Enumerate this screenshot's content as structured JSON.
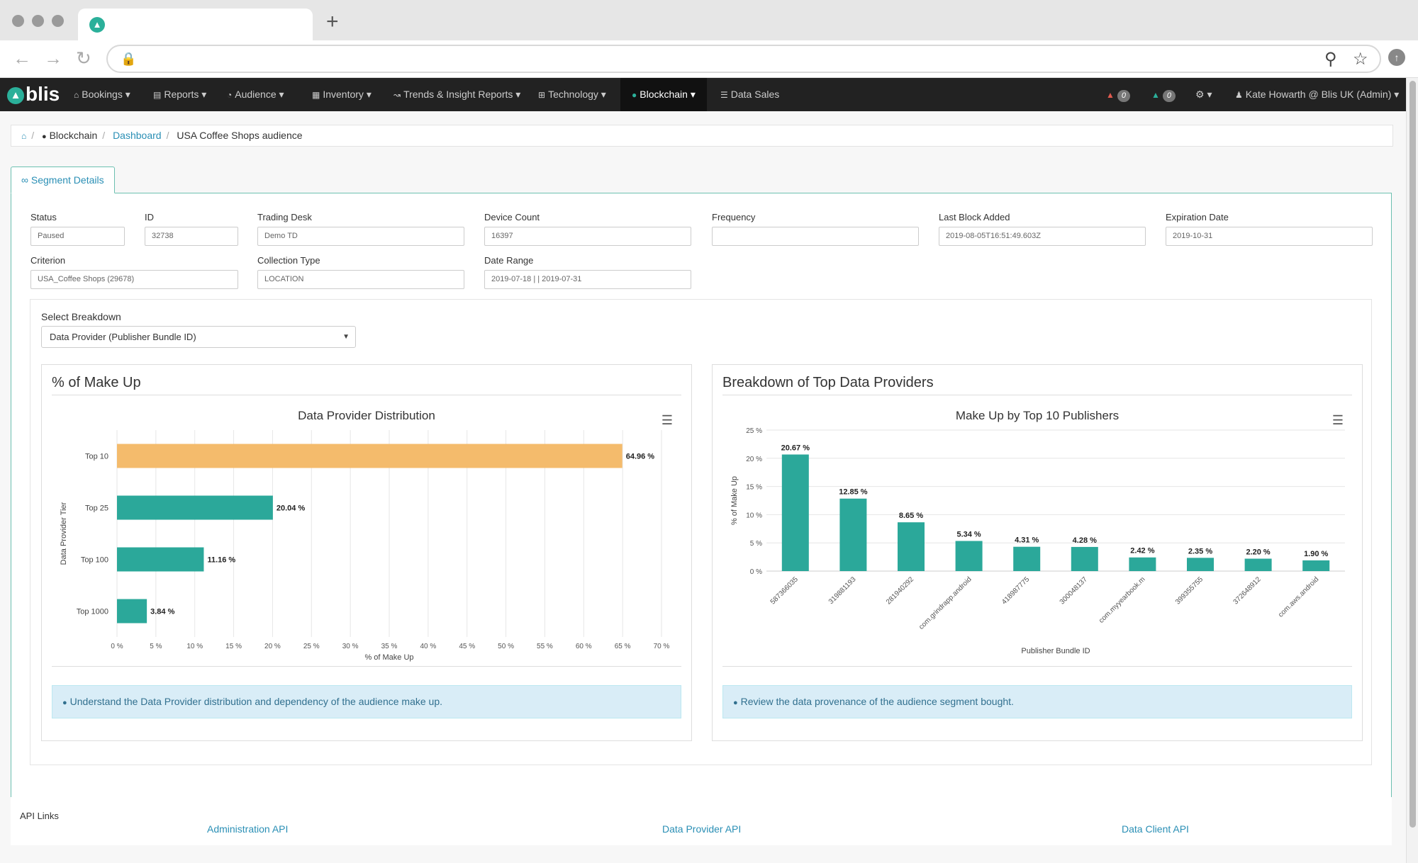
{
  "browser": {
    "new_tab": "+",
    "icons": {
      "back": "arrow-left-icon",
      "forward": "arrow-right-icon",
      "reload": "reload-icon",
      "lock": "lock-icon",
      "zoom": "magnifier-icon",
      "bookmark": "star-icon"
    }
  },
  "nav": {
    "brand": "blis",
    "items": [
      {
        "label": "Bookings",
        "icon": "home-icon"
      },
      {
        "label": "Reports",
        "icon": "chart-icon"
      },
      {
        "label": "Audience",
        "icon": "gauge-icon"
      },
      {
        "label": "Inventory",
        "icon": "grid-icon"
      },
      {
        "label": "Trends & Insight Reports",
        "icon": "line-chart-icon"
      },
      {
        "label": "Technology",
        "icon": "cog-grid-icon"
      },
      {
        "label": "Blockchain",
        "icon": "circle-icon"
      },
      {
        "label": "Data Sales",
        "icon": "list-icon"
      }
    ],
    "badge1": "0",
    "badge2": "0",
    "user": "Kate Howarth @ Blis UK (Admin)"
  },
  "breadcrumb": {
    "root": "Blockchain",
    "dashboard": "Dashboard",
    "current": "USA Coffee Shops audience"
  },
  "tab_label": "Segment Details",
  "fields": {
    "status": {
      "label": "Status",
      "value": "Paused"
    },
    "id": {
      "label": "ID",
      "value": "32738"
    },
    "trading_desk": {
      "label": "Trading Desk",
      "value": "Demo TD"
    },
    "device_count": {
      "label": "Device Count",
      "value": "16397"
    },
    "frequency": {
      "label": "Frequency",
      "value": ""
    },
    "last_block": {
      "label": "Last Block Added",
      "value": "2019-08-05T16:51:49.603Z"
    },
    "expiration": {
      "label": "Expiration Date",
      "value": "2019-10-31"
    },
    "criterion": {
      "label": "Criterion",
      "value": "USA_Coffee Shops (29678)"
    },
    "collection": {
      "label": "Collection Type",
      "value": "LOCATION"
    },
    "date_range": {
      "label": "Date Range",
      "value": "2019-07-18 | | 2019-07-31"
    }
  },
  "breakdown": {
    "label": "Select Breakdown",
    "selected": "Data Provider (Publisher Bundle ID)"
  },
  "left_card": {
    "title": "% of Make Up",
    "info": "Understand the Data Provider distribution and dependency of the audience make up."
  },
  "right_card": {
    "title": "Breakdown of Top Data Providers",
    "info": "Review the data provenance of the audience segment bought."
  },
  "chart_data": [
    {
      "type": "bar",
      "orientation": "horizontal",
      "title": "Data Provider Distribution",
      "xlabel": "% of Make Up",
      "ylabel": "Data Provider Tier",
      "categories": [
        "Top 10",
        "Top 25",
        "Top 100",
        "Top 1000"
      ],
      "values": [
        64.96,
        20.04,
        11.16,
        3.84
      ],
      "data_labels": [
        "64.96 %",
        "20.04 %",
        "11.16 %",
        "3.84 %"
      ],
      "colors": [
        "#f4bb6c",
        "#2ba89a",
        "#2ba89a",
        "#2ba89a"
      ],
      "xlim": [
        0,
        70
      ],
      "xticks": [
        "0 %",
        "5 %",
        "10 %",
        "15 %",
        "20 %",
        "25 %",
        "30 %",
        "35 %",
        "40 %",
        "45 %",
        "50 %",
        "55 %",
        "60 %",
        "65 %",
        "70 %"
      ],
      "grid": true
    },
    {
      "type": "bar",
      "title": "Make Up by Top 10 Publishers",
      "xlabel": "Publisher Bundle ID",
      "ylabel": "% of Make Up",
      "categories": [
        "587366035",
        "319881193",
        "281940292",
        "com.grindrapp.android",
        "418987775",
        "300048137",
        "com.myyearbook.m",
        "399355755",
        "372648912",
        "com.aws.android"
      ],
      "values": [
        20.67,
        12.85,
        8.65,
        5.34,
        4.31,
        4.28,
        2.42,
        2.35,
        2.2,
        1.9
      ],
      "data_labels": [
        "20.67 %",
        "12.85 %",
        "8.65 %",
        "5.34 %",
        "4.31 %",
        "4.28 %",
        "2.42 %",
        "2.35 %",
        "2.20 %",
        "1.90 %"
      ],
      "color": "#2ba89a",
      "ylim": [
        0,
        25
      ],
      "yticks": [
        "0 %",
        "5 %",
        "10 %",
        "15 %",
        "20 %",
        "25 %"
      ],
      "grid": true
    }
  ],
  "api": {
    "heading": "API Links",
    "links": [
      "Administration API",
      "Data Provider API",
      "Data Client API"
    ]
  }
}
